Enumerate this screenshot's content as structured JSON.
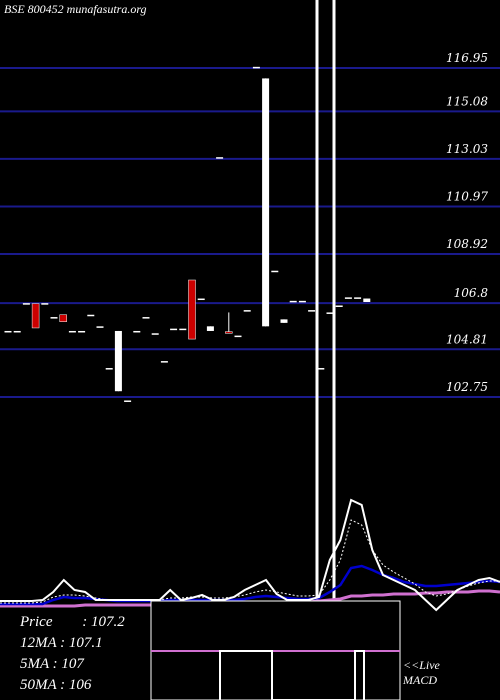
{
  "header": {
    "title": "BSE 800452 munafasutra.org"
  },
  "stats": [
    {
      "label": "Price",
      "value": ": 107.2"
    },
    {
      "label": "12MA",
      "value": ": 107.1"
    },
    {
      "label": "5MA",
      "value": ": 107"
    },
    {
      "label": "50MA",
      "value": ": 106"
    }
  ],
  "macd_labels": [
    "<<Live",
    "MACD"
  ],
  "colors": {
    "background": "#000000",
    "gridline": "#1a1a8c",
    "up_candle": "#ffffff",
    "down_candle": "#cc0000",
    "ma_blue": "#0000cc",
    "ma_pink": "#d070d0",
    "text": "#ffffff"
  },
  "chart_data": {
    "type": "candlestick",
    "y_ticks": [
      116.95,
      115.08,
      113.03,
      110.97,
      108.92,
      106.8,
      104.81,
      102.75
    ],
    "candles": [
      {
        "o": 105.6,
        "h": 105.6,
        "l": 105.6,
        "c": 105.6,
        "color": "white"
      },
      {
        "o": 105.6,
        "h": 105.6,
        "l": 105.6,
        "c": 105.6,
        "color": "white"
      },
      {
        "o": 106.8,
        "h": 106.8,
        "l": 106.8,
        "c": 106.8,
        "color": "white"
      },
      {
        "o": 106.78,
        "h": 106.78,
        "l": 105.73,
        "c": 105.73,
        "color": "red"
      },
      {
        "o": 106.8,
        "h": 106.8,
        "l": 106.8,
        "c": 106.8,
        "color": "white"
      },
      {
        "o": 106.2,
        "h": 106.2,
        "l": 106.2,
        "c": 106.2,
        "color": "white"
      },
      {
        "o": 106.3,
        "h": 106.3,
        "l": 106.0,
        "c": 106.0,
        "color": "red"
      },
      {
        "o": 105.6,
        "h": 105.6,
        "l": 105.6,
        "c": 105.6,
        "color": "white"
      },
      {
        "o": 105.6,
        "h": 105.6,
        "l": 105.6,
        "c": 105.6,
        "color": "white"
      },
      {
        "o": 106.3,
        "h": 106.3,
        "l": 106.3,
        "c": 106.3,
        "color": "white"
      },
      {
        "o": 105.8,
        "h": 105.8,
        "l": 105.8,
        "c": 105.8,
        "color": "white"
      },
      {
        "o": 104.0,
        "h": 104.0,
        "l": 104.0,
        "c": 104.0,
        "color": "white"
      },
      {
        "o": 103.0,
        "h": 105.6,
        "l": 103.0,
        "c": 105.6,
        "color": "white"
      },
      {
        "o": 102.6,
        "h": 102.6,
        "l": 102.6,
        "c": 102.6,
        "color": "white"
      },
      {
        "o": 105.6,
        "h": 105.6,
        "l": 105.6,
        "c": 105.6,
        "color": "white"
      },
      {
        "o": 106.2,
        "h": 106.2,
        "l": 106.2,
        "c": 106.2,
        "color": "white"
      },
      {
        "o": 105.5,
        "h": 105.5,
        "l": 105.5,
        "c": 105.5,
        "color": "white"
      },
      {
        "o": 104.3,
        "h": 104.3,
        "l": 104.3,
        "c": 104.3,
        "color": "white"
      },
      {
        "o": 105.7,
        "h": 105.7,
        "l": 105.7,
        "c": 105.7,
        "color": "white"
      },
      {
        "o": 105.7,
        "h": 105.7,
        "l": 105.7,
        "c": 105.7,
        "color": "white"
      },
      {
        "o": 107.8,
        "h": 107.8,
        "l": 105.25,
        "c": 105.25,
        "color": "red"
      },
      {
        "o": 107.0,
        "h": 107.0,
        "l": 107.0,
        "c": 107.0,
        "color": "white"
      },
      {
        "o": 105.6,
        "h": 105.8,
        "l": 105.6,
        "c": 105.8,
        "color": "white"
      },
      {
        "o": 113.1,
        "h": 113.1,
        "l": 113.1,
        "c": 113.1,
        "color": "white"
      },
      {
        "o": 105.57,
        "h": 106.4,
        "l": 105.5,
        "c": 105.5,
        "color": "red"
      },
      {
        "o": 105.4,
        "h": 105.4,
        "l": 105.4,
        "c": 105.4,
        "color": "white"
      },
      {
        "o": 106.5,
        "h": 106.5,
        "l": 106.5,
        "c": 106.5,
        "color": "white"
      },
      {
        "o": 117.0,
        "h": 117.0,
        "l": 117.0,
        "c": 117.0,
        "color": "white"
      },
      {
        "o": 105.8,
        "h": 116.5,
        "l": 105.8,
        "c": 116.5,
        "color": "white"
      },
      {
        "o": 108.2,
        "h": 108.2,
        "l": 108.2,
        "c": 108.2,
        "color": "white"
      },
      {
        "o": 105.95,
        "h": 106.1,
        "l": 105.95,
        "c": 106.1,
        "color": "white"
      },
      {
        "o": 106.9,
        "h": 106.9,
        "l": 106.9,
        "c": 106.9,
        "color": "white"
      },
      {
        "o": 106.9,
        "h": 106.9,
        "l": 106.9,
        "c": 106.9,
        "color": "white"
      },
      {
        "o": 106.5,
        "h": 106.5,
        "l": 106.5,
        "c": 106.5,
        "color": "white"
      },
      {
        "o": 104.0,
        "h": 104.0,
        "l": 104.0,
        "c": 104.0,
        "color": "white"
      },
      {
        "o": 106.4,
        "h": 106.4,
        "l": 106.4,
        "c": 106.4,
        "color": "white"
      },
      {
        "o": 106.7,
        "h": 106.7,
        "l": 106.7,
        "c": 106.7,
        "color": "white"
      },
      {
        "o": 107.05,
        "h": 107.05,
        "l": 107.05,
        "c": 107.05,
        "color": "white"
      },
      {
        "o": 107.05,
        "h": 107.05,
        "l": 107.05,
        "c": 107.05,
        "color": "white"
      },
      {
        "o": 106.85,
        "h": 107.0,
        "l": 106.85,
        "c": 107.0,
        "color": "white"
      }
    ],
    "indicator_white": [
      601,
      601,
      601,
      601,
      600,
      592,
      580,
      590,
      592,
      600,
      600,
      600,
      600,
      600,
      600,
      600,
      590,
      600,
      598,
      595,
      600,
      600,
      597,
      590,
      585,
      580,
      594,
      600,
      600,
      600,
      597,
      560,
      540,
      500,
      505,
      550,
      575,
      580,
      585,
      590,
      600,
      610,
      600,
      590,
      585,
      580,
      578,
      582
    ],
    "indicator_dotted": [
      603,
      603,
      603,
      603,
      602,
      597,
      595,
      595,
      596,
      598,
      600,
      600,
      600,
      600,
      600,
      600,
      598,
      598,
      597,
      597,
      598,
      598,
      597,
      595,
      592,
      590,
      592,
      594,
      596,
      596,
      595,
      580,
      560,
      520,
      525,
      550,
      565,
      572,
      578,
      584,
      592,
      596,
      594,
      590,
      586,
      583,
      581,
      581
    ],
    "indicator_blue": [
      604,
      604,
      604,
      604,
      604,
      600,
      597,
      598,
      598,
      599,
      600,
      601,
      601,
      601,
      601,
      601,
      600,
      600,
      600,
      600,
      600,
      600,
      600,
      599,
      597,
      596,
      597,
      598,
      599,
      599,
      598,
      592,
      585,
      568,
      566,
      570,
      575,
      578,
      582,
      584,
      586,
      586,
      585,
      584,
      583,
      582,
      581,
      582
    ],
    "indicator_pink": [
      606,
      606,
      606,
      606,
      606,
      606,
      606,
      606,
      605,
      605,
      605,
      605,
      605,
      605,
      605,
      605,
      605,
      605,
      605,
      605,
      605,
      604,
      604,
      603,
      603,
      603,
      603,
      602,
      602,
      602,
      601,
      600,
      599,
      596,
      596,
      595,
      595,
      594,
      594,
      594,
      593,
      593,
      592,
      592,
      592,
      591,
      591,
      592
    ]
  }
}
